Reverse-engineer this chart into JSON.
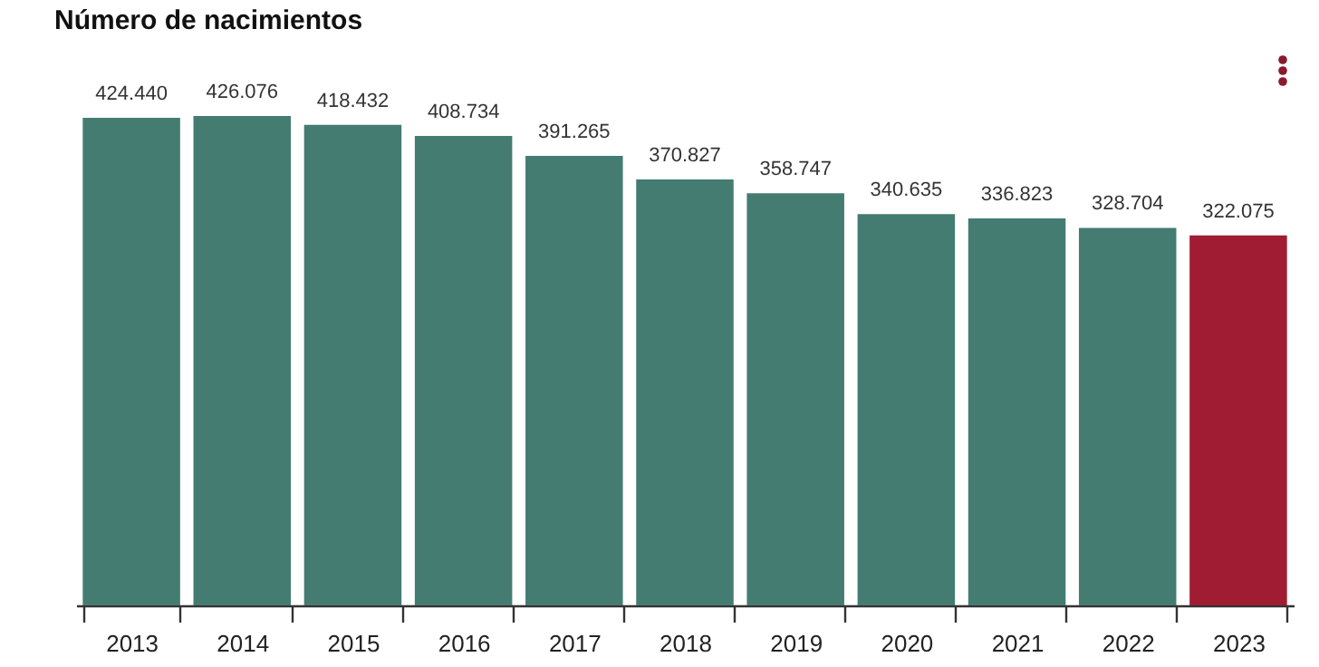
{
  "chart_data": {
    "type": "bar",
    "title": "Número de nacimientos",
    "categories": [
      "2013",
      "2014",
      "2015",
      "2016",
      "2017",
      "2018",
      "2019",
      "2020",
      "2021",
      "2022",
      "2023"
    ],
    "values": [
      424440,
      426076,
      418432,
      408734,
      391265,
      370827,
      358747,
      340635,
      336823,
      328704,
      322075
    ],
    "value_labels": [
      "424.440",
      "426.076",
      "418.432",
      "408.734",
      "391.265",
      "370.827",
      "358.747",
      "340.635",
      "336.823",
      "328.704",
      "322.075"
    ],
    "colors": [
      "#447c72",
      "#447c72",
      "#447c72",
      "#447c72",
      "#447c72",
      "#447c72",
      "#447c72",
      "#447c72",
      "#447c72",
      "#447c72",
      "#a01c33"
    ]
  }
}
